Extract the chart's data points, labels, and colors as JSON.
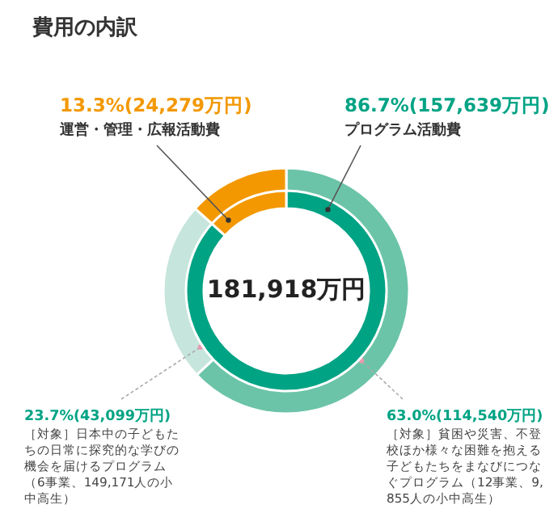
{
  "chart_data": [
    {
      "type": "donut",
      "title": "費用の内訳",
      "annotations": [
        "181,918万円"
      ],
      "categories": [
        "プログラム活動費",
        "運営・管理・広報活動費"
      ],
      "values": [
        86.7,
        13.3
      ],
      "colors": [
        "#00a384",
        "#f39800"
      ],
      "value_labels": [
        "86.7%(157,639万円)",
        "13.3%(24,279万円)"
      ]
    },
    {
      "type": "donut",
      "categories": [
        "［対象］貧困や災害、不登校ほか様々な困難を抱える子どもたちをまなびにつなぐプログラム（12事業、9,855人の小中高生）",
        "［対象］日本中の子どもたちの日常に探究的な学びの機会を届けるプログラム（6事業、149,171人の小中高生）",
        null
      ],
      "values": [
        63.0,
        23.7,
        13.3
      ],
      "colors": [
        "#6cc4a8",
        "#c6e5dc",
        "#f39800"
      ],
      "value_labels": [
        "63.0%(114,540万円)",
        "23.7%(43,099万円)",
        null
      ]
    }
  ]
}
